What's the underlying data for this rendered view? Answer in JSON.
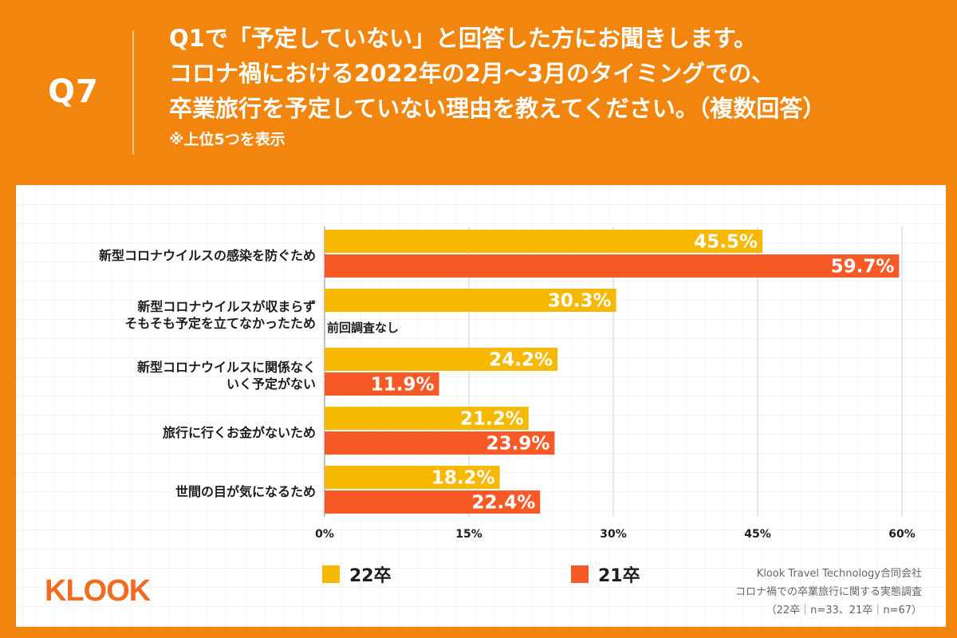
{
  "header": {
    "question_number": "Q7",
    "question_lines": [
      "Q1で「予定していない」と回答した方にお聞きします。",
      "コロナ禍における2022年の2月〜3月のタイミングでの、",
      "卒業旅行を予定していない理由を教えてください。（複数回答）"
    ],
    "note": "※上位5つを表示"
  },
  "colors": {
    "background": "#f2850d",
    "series_22": "#f6b800",
    "series_21": "#f75a27",
    "logo": "#f26b21"
  },
  "chart_data": {
    "type": "bar",
    "orientation": "horizontal",
    "categories": [
      "新型コロナウイルスの感染を防ぐため",
      "新型コロナウイルスが収まらず\nそもそも予定を立てなかったため",
      "新型コロナウイルスに関係なく\nいく予定がない",
      "旅行に行くお金がないため",
      "世間の目が気になるため"
    ],
    "series": [
      {
        "name": "22卒",
        "values": [
          45.5,
          30.3,
          24.2,
          21.2,
          18.2
        ]
      },
      {
        "name": "21卒",
        "values": [
          59.7,
          null,
          11.9,
          23.9,
          22.4
        ]
      }
    ],
    "value_labels": [
      [
        "45.5%",
        "30.3%",
        "24.2%",
        "21.2%",
        "18.2%"
      ],
      [
        "59.7%",
        null,
        "11.9%",
        "23.9%",
        "22.4%"
      ]
    ],
    "xlim": [
      0,
      60
    ],
    "xticks": [
      "0%",
      "15%",
      "30%",
      "45%",
      "60%"
    ],
    "grid": true,
    "legend_position": "bottom",
    "missing_note": "前回調査なし"
  },
  "logo_text": "KLOOK",
  "source_lines": [
    "Klook Travel Technology合同会社",
    "コロナ禍での卒業旅行に関する実態調査",
    "（22卒｜n=33、21卒｜n=67）"
  ]
}
